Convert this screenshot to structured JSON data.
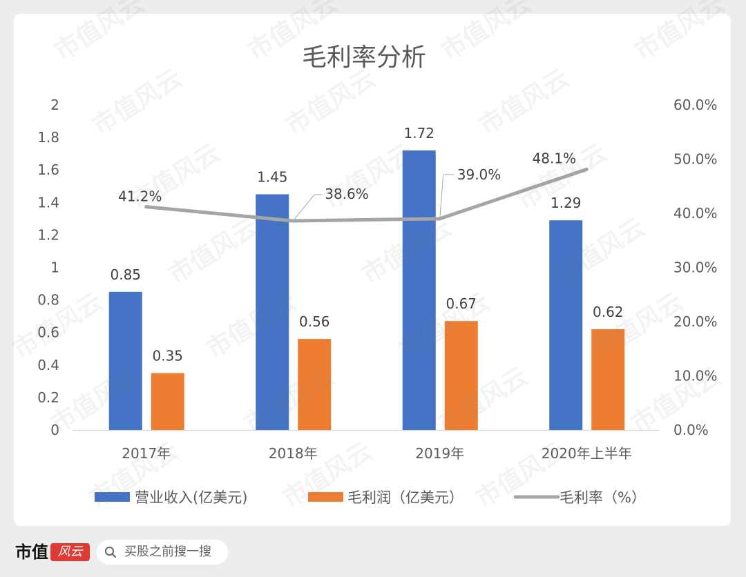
{
  "chart_data": {
    "type": "bar",
    "title": "毛利率分析",
    "categories": [
      "2017年",
      "2018年",
      "2019年",
      "2020年上半年"
    ],
    "series": [
      {
        "name": "营业收入(亿美元)",
        "type": "bar",
        "color": "#4472c4",
        "values": [
          0.85,
          1.45,
          1.72,
          1.29
        ],
        "labels": [
          "0.85",
          "1.45",
          "1.72",
          "1.29"
        ]
      },
      {
        "name": "毛利润（亿美元）",
        "type": "bar",
        "color": "#ed7d31",
        "values": [
          0.35,
          0.56,
          0.67,
          0.62
        ],
        "labels": [
          "0.35",
          "0.56",
          "0.67",
          "0.62"
        ]
      },
      {
        "name": "毛利率（%）",
        "type": "line",
        "color": "#a5a5a5",
        "values": [
          41.2,
          38.6,
          39.0,
          48.1
        ],
        "labels": [
          "41.2%",
          "38.6%",
          "39.0%",
          "48.1%"
        ]
      }
    ],
    "y_left": {
      "ylim": [
        0,
        2
      ],
      "ticks": [
        0,
        0.2,
        0.4,
        0.6,
        0.8,
        1,
        1.2,
        1.4,
        1.6,
        1.8,
        2
      ],
      "tick_labels": [
        "0",
        "0.2",
        "0.4",
        "0.6",
        "0.8",
        "1",
        "1.2",
        "1.4",
        "1.6",
        "1.8",
        "2"
      ]
    },
    "y_right": {
      "ylim": [
        0,
        60
      ],
      "ticks": [
        0,
        10,
        20,
        30,
        40,
        50,
        60
      ],
      "tick_labels": [
        "0.0%",
        "10.0%",
        "20.0%",
        "30.0%",
        "40.0%",
        "50.0%",
        "60.0%"
      ]
    },
    "xlabel": "",
    "ylabel": "",
    "grid": false,
    "legend": "bottom"
  },
  "footer": {
    "brand": "市值",
    "brand_logo": "风云",
    "search_placeholder": "买股之前搜一搜",
    "search_icon": "search-icon"
  },
  "watermark": {
    "text": "市值风云"
  },
  "colors": {
    "page_bg": "#ededed",
    "card_bg": "#ffffff",
    "text": "#595959",
    "brand_red": "#e03a36"
  }
}
